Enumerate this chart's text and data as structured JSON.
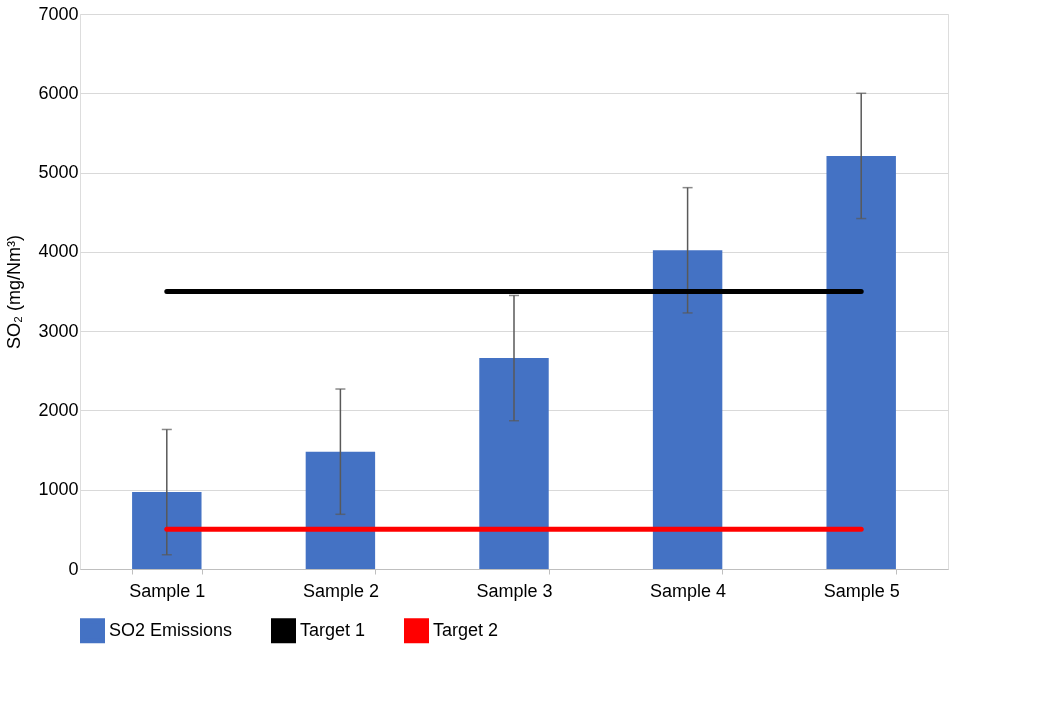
{
  "chart_data": {
    "type": "bar",
    "ylabel": "SO₂ (mg/Nm³)",
    "categories": [
      "Sample 1",
      "Sample 2",
      "Sample 3",
      "Sample 4",
      "Sample 5"
    ],
    "series": [
      {
        "name": "SO2 Emissions",
        "color": "#4472c4",
        "values": [
          970,
          1480,
          2660,
          4020,
          5210
        ],
        "errors": [
          790,
          790,
          790,
          790,
          790
        ]
      },
      {
        "name": "Target 1",
        "type": "line",
        "color": "#000000",
        "values": [
          3500,
          3500,
          3500,
          3500,
          3500
        ]
      },
      {
        "name": "Target 2",
        "type": "line",
        "color": "#ff0000",
        "values": [
          500,
          500,
          500,
          500,
          500
        ]
      }
    ],
    "ylim": [
      0,
      7000
    ],
    "yticks": [
      0,
      1000,
      2000,
      3000,
      4000,
      5000,
      6000,
      7000
    ],
    "grid": "y",
    "legend": "bottom",
    "marker": "none",
    "line_style": "solid"
  }
}
